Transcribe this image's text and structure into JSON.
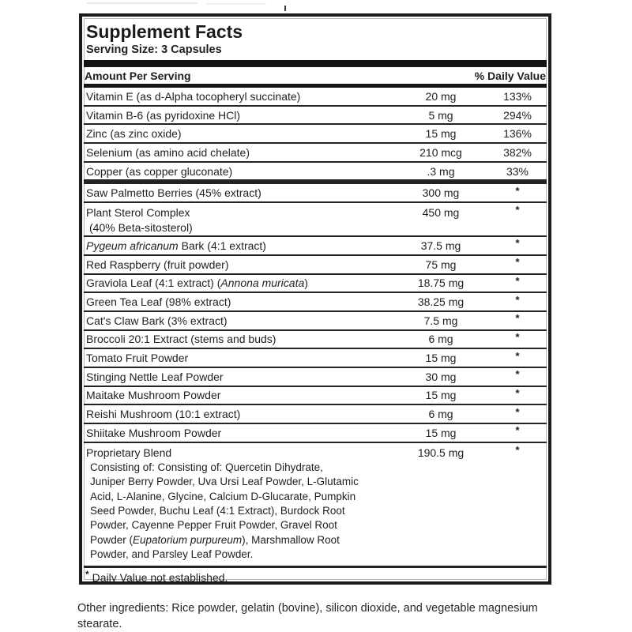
{
  "panel": {
    "title": "Supplement Facts",
    "serving_size": "Serving Size: 3 Capsules",
    "header": {
      "amount_label": "Amount Per Serving",
      "daily_value_label": "% Daily Value"
    },
    "rows": [
      {
        "name_parts": [
          {
            "text": "Vitamin E (as d-Alpha tocopheryl succinate)"
          }
        ],
        "amount": "20 mg",
        "dv": "133%"
      },
      {
        "name_parts": [
          {
            "text": "Vitamin B-6 (as pyridoxine HCl)"
          }
        ],
        "amount": "5 mg",
        "dv": "294%"
      },
      {
        "name_parts": [
          {
            "text": "Zinc (as zinc oxide)"
          }
        ],
        "amount": "15 mg",
        "dv": "136%"
      },
      {
        "name_parts": [
          {
            "text": "Selenium (as amino acid chelate)"
          }
        ],
        "amount": "210 mcg",
        "dv": "382%"
      },
      {
        "name_parts": [
          {
            "text": "Copper (as copper gluconate)"
          }
        ],
        "amount": ".3 mg",
        "dv": "33%",
        "section_end": true
      },
      {
        "name_parts": [
          {
            "text": "Saw Palmetto Berries (45% extract)"
          }
        ],
        "amount": "300 mg",
        "dv": "*"
      },
      {
        "name_parts": [
          {
            "text": "Plant Sterol Complex"
          }
        ],
        "name_line2": "(40% Beta-sitosterol)",
        "amount": "450 mg",
        "dv": "*"
      },
      {
        "name_parts": [
          {
            "text": "Pygeum africanum",
            "italic": true
          },
          {
            "text": " Bark (4:1 extract)"
          }
        ],
        "amount": "37.5 mg",
        "dv": "*"
      },
      {
        "name_parts": [
          {
            "text": "Red Raspberry (fruit powder)"
          }
        ],
        "amount": "75 mg",
        "dv": "*"
      },
      {
        "name_parts": [
          {
            "text": "Graviola Leaf (4:1 extract) ("
          },
          {
            "text": "Annona muricata",
            "italic": true
          },
          {
            "text": ")"
          }
        ],
        "amount": "18.75 mg",
        "dv": "*"
      },
      {
        "name_parts": [
          {
            "text": "Green Tea Leaf (98% extract)"
          }
        ],
        "amount": "38.25 mg",
        "dv": "*"
      },
      {
        "name_parts": [
          {
            "text": "Cat's Claw Bark (3% extract)"
          }
        ],
        "amount": "7.5 mg",
        "dv": "*"
      },
      {
        "name_parts": [
          {
            "text": "Broccoli 20:1 Extract (stems and buds)"
          }
        ],
        "amount": "6 mg",
        "dv": "*"
      },
      {
        "name_parts": [
          {
            "text": "Tomato Fruit Powder"
          }
        ],
        "amount": "15 mg",
        "dv": "*"
      },
      {
        "name_parts": [
          {
            "text": "Stinging Nettle Leaf Powder"
          }
        ],
        "amount": "30 mg",
        "dv": "*"
      },
      {
        "name_parts": [
          {
            "text": "Maitake Mushroom Powder"
          }
        ],
        "amount": "15 mg",
        "dv": "*"
      },
      {
        "name_parts": [
          {
            "text": "Reishi Mushroom (10:1 extract)"
          }
        ],
        "amount": "6 mg",
        "dv": "*"
      },
      {
        "name_parts": [
          {
            "text": "Shiitake Mushroom Powder"
          }
        ],
        "amount": "15 mg",
        "dv": "*"
      },
      {
        "name_parts": [
          {
            "text": "Proprietary Blend"
          }
        ],
        "amount": "190.5 mg",
        "dv": "*",
        "pre_footnote": true,
        "description_lines": [
          [
            {
              "text": "Consisting of: Consisting of: Quercetin Dihydrate,"
            }
          ],
          [
            {
              "text": "Juniper Berry Powder, Uva Ursi Leaf Powder, L-Glutamic"
            }
          ],
          [
            {
              "text": "Acid, L-Alanine, Glycine, Calcium D-Glucarate, Pumpkin"
            }
          ],
          [
            {
              "text": "Seed Powder, Buchu Leaf (4:1 Extract), Burdock Root"
            }
          ],
          [
            {
              "text": "Powder, Cayenne Pepper Fruit Powder, Gravel Root"
            }
          ],
          [
            {
              "text": "Powder ("
            },
            {
              "text": "Eupatorium purpureum",
              "italic": true
            },
            {
              "text": "), Marshmallow Root"
            }
          ],
          [
            {
              "text": "Powder, and Parsley Leaf Powder."
            }
          ]
        ]
      }
    ],
    "footnote": {
      "star": "*",
      "text": "Daily Value not established."
    }
  },
  "other_ingredients": "Other ingredients: Rice powder, gelatin (bovine), silicon dioxide, and vegetable magnesium stearate.",
  "colors": {
    "border": "#1c1c1a",
    "bar": "#141414",
    "text": "#1f1f1f"
  }
}
